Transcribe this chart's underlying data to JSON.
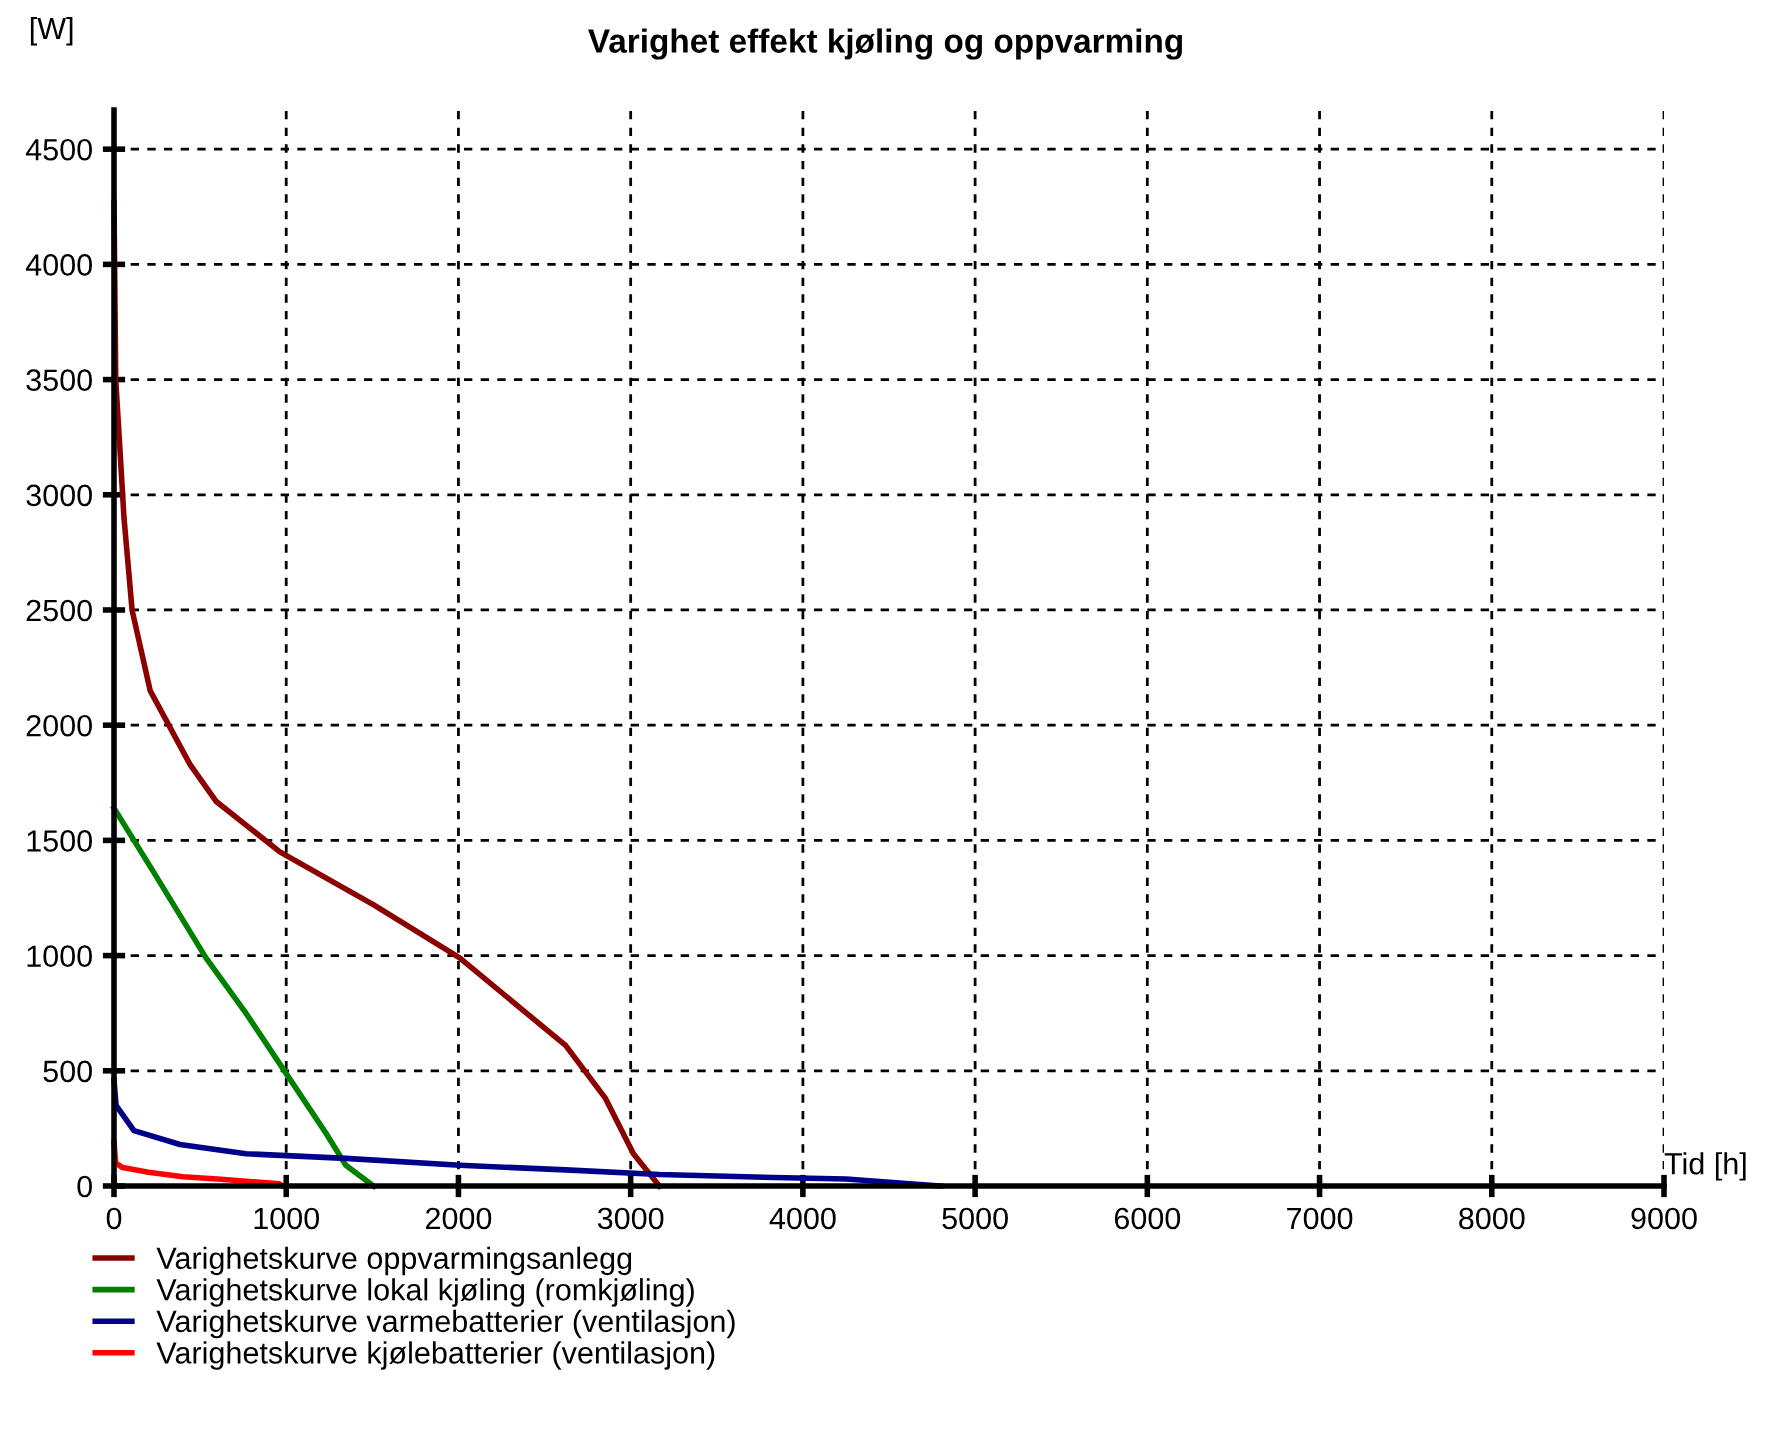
{
  "chart_data": {
    "type": "line",
    "title": "Varighet effekt kjøling og oppvarming",
    "ylabel": "[W]",
    "xlabel": "Tid [h]",
    "xlim": [
      0,
      9000
    ],
    "ylim": [
      0,
      4670
    ],
    "xticks": [
      0,
      1000,
      2000,
      3000,
      4000,
      5000,
      6000,
      7000,
      8000,
      9000
    ],
    "yticks": [
      0,
      500,
      1000,
      1500,
      2000,
      2500,
      3000,
      3500,
      4000,
      4500
    ],
    "grid": true,
    "legend": "bottom",
    "line_style": "solid",
    "series": [
      {
        "name": "Varighetskurve oppvarmingsanlegg",
        "color": "#8b0000",
        "x": [
          0,
          10,
          35,
          58,
          105,
          210,
          441,
          592,
          963,
          1508,
          2007,
          2622,
          2854,
          3016,
          3167
        ],
        "values": [
          4270,
          3500,
          3190,
          2900,
          2500,
          2150,
          1830,
          1670,
          1450,
          1220,
          990,
          610,
          380,
          140,
          0
        ]
      },
      {
        "name": "Varighetskurve lokal kjøling (romkjøling)",
        "color": "#008000",
        "x": [
          0,
          232,
          534,
          766,
          998,
          1230,
          1346,
          1508
        ],
        "values": [
          1640,
          1360,
          990,
          750,
          490,
          230,
          90,
          0
        ]
      },
      {
        "name": "Varighetskurve varmebatterier (ventilasjon)",
        "color": "#00008b",
        "x": [
          0,
          12,
          116,
          383,
          766,
          1346,
          2007,
          2622,
          3167,
          3666,
          4250,
          4800
        ],
        "values": [
          460,
          350,
          240,
          180,
          140,
          120,
          90,
          70,
          50,
          40,
          30,
          0
        ]
      },
      {
        "name": "Varighetskurve kjølebatterier (ventilasjon)",
        "color": "#ff0000",
        "x": [
          0,
          10,
          50,
          200,
          400,
          600,
          960,
          980
        ],
        "values": [
          190,
          100,
          80,
          60,
          40,
          30,
          10,
          0
        ]
      }
    ]
  }
}
